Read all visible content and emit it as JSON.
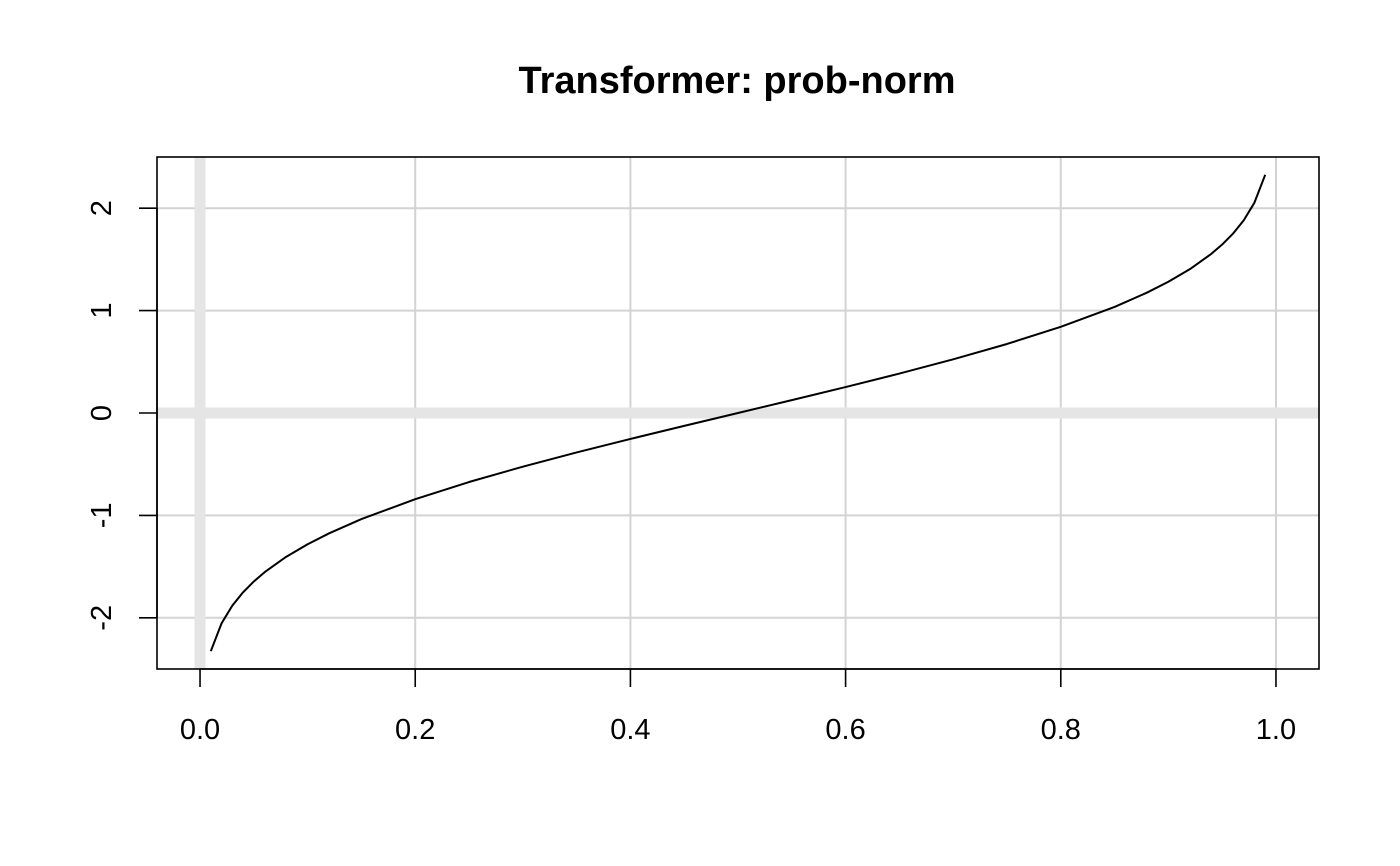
{
  "chart_data": {
    "type": "line",
    "title": "Transformer: prob-norm",
    "xlabel": "",
    "ylabel": "",
    "xlim": [
      -0.04,
      1.04
    ],
    "ylim": [
      -2.5,
      2.5
    ],
    "x_ticks": [
      0.0,
      0.2,
      0.4,
      0.6,
      0.8,
      1.0
    ],
    "x_tick_labels": [
      "0.0",
      "0.2",
      "0.4",
      "0.6",
      "0.8",
      "1.0"
    ],
    "y_ticks": [
      -2,
      -1,
      0,
      1,
      2
    ],
    "y_tick_labels": [
      "-2",
      "-1",
      "0",
      "1",
      "2"
    ],
    "grid": true,
    "reference_lines": {
      "x": 0,
      "y": 0
    },
    "colors": {
      "line": "#000000",
      "grid": "#d3d3d3",
      "reference": "#e5e5e5",
      "frame": "#000000"
    },
    "series": [
      {
        "x": [
          0.01,
          0.02,
          0.03,
          0.04,
          0.05,
          0.06,
          0.08,
          0.1,
          0.12,
          0.15,
          0.2,
          0.25,
          0.3,
          0.35,
          0.4,
          0.45,
          0.5,
          0.55,
          0.6,
          0.65,
          0.7,
          0.75,
          0.8,
          0.85,
          0.88,
          0.9,
          0.92,
          0.94,
          0.95,
          0.96,
          0.97,
          0.98,
          0.99
        ],
        "y": [
          -2.326,
          -2.054,
          -1.881,
          -1.751,
          -1.645,
          -1.555,
          -1.405,
          -1.282,
          -1.175,
          -1.036,
          -0.842,
          -0.674,
          -0.524,
          -0.385,
          -0.253,
          -0.126,
          0.0,
          0.126,
          0.253,
          0.385,
          0.524,
          0.674,
          0.842,
          1.036,
          1.175,
          1.282,
          1.405,
          1.555,
          1.645,
          1.751,
          1.881,
          2.054,
          2.326
        ]
      }
    ]
  }
}
